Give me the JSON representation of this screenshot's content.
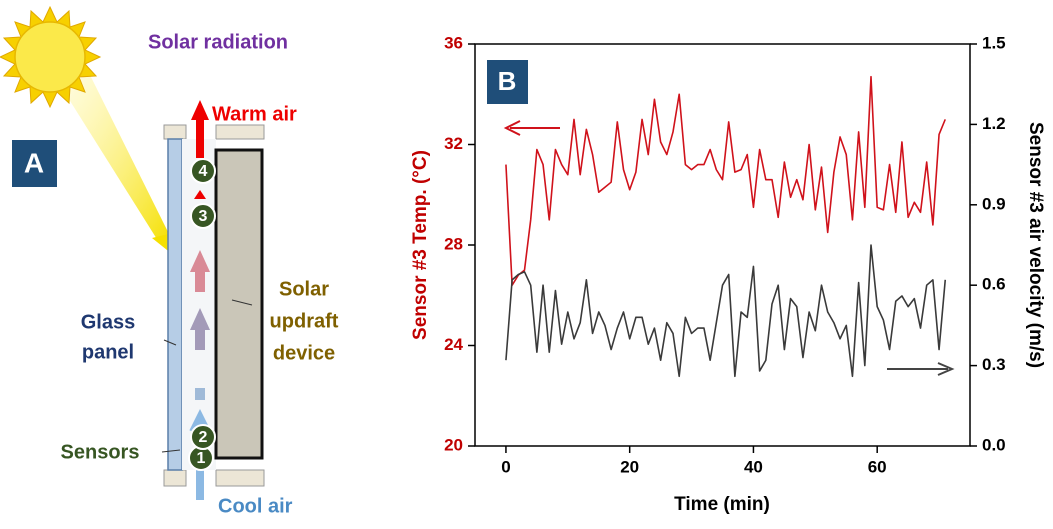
{
  "panel_a": {
    "label": "A",
    "solar_radiation": "Solar radiation",
    "warm_air": "Warm air",
    "cool_air": "Cool air",
    "glass_panel": [
      "Glass",
      "panel"
    ],
    "device": [
      "Solar",
      "updraft",
      "device"
    ],
    "sensors": "Sensors",
    "sensor_numbers": [
      "1",
      "2",
      "3",
      "4"
    ]
  },
  "chart_data": {
    "type": "line",
    "panel_label": "B",
    "x_label": "Time (min)",
    "y_label": "Sensor #3 Temp. (°C)",
    "y2_label": "Sensor #3 air velocity (m/s)",
    "xlim": [
      -5,
      75
    ],
    "xticks": [
      0,
      20,
      40,
      60
    ],
    "ylim": [
      20,
      36
    ],
    "yticks": [
      20,
      24,
      28,
      32,
      36
    ],
    "y2lim": [
      0,
      1.5
    ],
    "y2ticks": [
      {
        "value": 0,
        "label": "0.0"
      },
      0.3,
      0.6,
      0.9,
      1.2,
      1.5
    ],
    "x": [
      0,
      1,
      2,
      3,
      4,
      5,
      6,
      7,
      8,
      9,
      10,
      11,
      12,
      13,
      14,
      15,
      16,
      17,
      18,
      19,
      20,
      21,
      22,
      23,
      24,
      25,
      26,
      27,
      28,
      29,
      30,
      31,
      32,
      33,
      34,
      35,
      36,
      37,
      38,
      39,
      40,
      41,
      42,
      43,
      44,
      45,
      46,
      47,
      48,
      49,
      50,
      51,
      52,
      53,
      54,
      55,
      56,
      57,
      58,
      59,
      60,
      61,
      62,
      63,
      64,
      65,
      66,
      67,
      68,
      69,
      70,
      71
    ],
    "series": [
      {
        "color": "#d0121b",
        "axis": "y",
        "values": [
          31.2,
          26.4,
          26.8,
          27.0,
          29.0,
          31.8,
          31.2,
          29.0,
          31.8,
          31.2,
          30.8,
          33.0,
          30.8,
          32.6,
          31.6,
          30.1,
          30.3,
          30.5,
          32.9,
          31.0,
          30.2,
          30.9,
          33.0,
          31.6,
          33.8,
          32.1,
          31.6,
          32.5,
          34.0,
          31.2,
          31.0,
          31.2,
          31.2,
          31.8,
          31.0,
          30.6,
          32.9,
          30.9,
          31.0,
          31.6,
          29.5,
          31.8,
          30.6,
          30.6,
          29.1,
          31.3,
          29.9,
          30.6,
          29.8,
          32.0,
          29.4,
          31.1,
          28.5,
          30.9,
          32.3,
          31.6,
          29.0,
          32.5,
          29.5,
          34.7,
          29.5,
          29.4,
          31.2,
          29.3,
          32.1,
          29.1,
          29.7,
          29.3,
          31.3,
          28.8,
          32.4,
          33.0
        ]
      },
      {
        "color": "#3a3a3a",
        "axis": "y2",
        "values": [
          0.32,
          0.62,
          0.64,
          0.65,
          0.6,
          0.35,
          0.6,
          0.35,
          0.58,
          0.38,
          0.5,
          0.4,
          0.46,
          0.62,
          0.42,
          0.5,
          0.45,
          0.36,
          0.44,
          0.5,
          0.4,
          0.48,
          0.48,
          0.38,
          0.44,
          0.32,
          0.46,
          0.42,
          0.26,
          0.48,
          0.42,
          0.44,
          0.44,
          0.32,
          0.46,
          0.6,
          0.64,
          0.26,
          0.5,
          0.48,
          0.67,
          0.28,
          0.32,
          0.53,
          0.6,
          0.36,
          0.55,
          0.52,
          0.33,
          0.5,
          0.43,
          0.6,
          0.5,
          0.46,
          0.4,
          0.45,
          0.26,
          0.61,
          0.3,
          0.75,
          0.52,
          0.47,
          0.36,
          0.54,
          0.56,
          0.52,
          0.55,
          0.44,
          0.6,
          0.62,
          0.36,
          0.62
        ]
      }
    ]
  }
}
